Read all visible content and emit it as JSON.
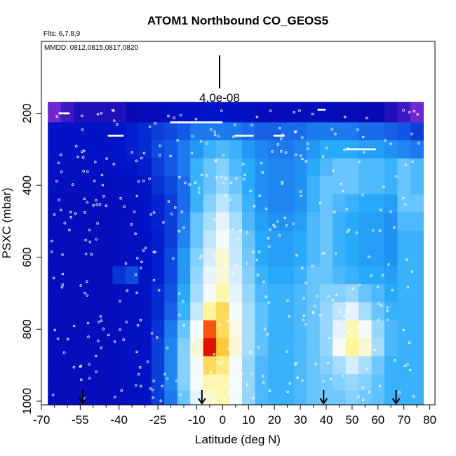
{
  "chart_data": {
    "type": "heatmap",
    "title": "ATOM1 Northbound CO_GEOS5",
    "flights_note": "Flts: 6,7,8,9",
    "dates_note": "MMDD: 0812,0815,0817,0820",
    "scale_label": "4.0e-08",
    "xlabel": "Latitude (deg N)",
    "ylabel": "PSXC (mbar)",
    "xlim": [
      -70,
      82
    ],
    "ylim": [
      1010,
      0
    ],
    "x_ticks": [
      "-70",
      "-55",
      "-40",
      "-25",
      "-10",
      "0",
      "10",
      "20",
      "30",
      "40",
      "50",
      "60",
      "70",
      "80"
    ],
    "x_tick_values": [
      -70,
      -55,
      -40,
      -25,
      -10,
      0,
      10,
      20,
      30,
      40,
      50,
      60,
      70,
      80
    ],
    "y_ticks": [
      "200",
      "400",
      "600",
      "800",
      "1000"
    ],
    "y_tick_values": [
      200,
      400,
      600,
      800,
      1000
    ],
    "arrow_latitudes": [
      -54,
      -8,
      39,
      67
    ],
    "lat_bins": [
      -65,
      -60,
      -55,
      -50,
      -45,
      -40,
      -35,
      -30,
      -25,
      -20,
      -15,
      -10,
      -5,
      0,
      5,
      10,
      15,
      20,
      25,
      30,
      35,
      40,
      45,
      50,
      55,
      60,
      65,
      70,
      75
    ],
    "pressure_bins": [
      200,
      250,
      300,
      350,
      400,
      450,
      500,
      550,
      600,
      650,
      700,
      750,
      800,
      850,
      900,
      950,
      990
    ],
    "values_relative": [
      [
        0.0,
        0.05,
        0.08,
        0.08,
        0.08,
        0.08,
        0.1,
        0.12,
        0.15,
        0.18,
        0.2,
        0.2,
        0.22,
        0.2,
        0.2,
        0.18,
        0.15,
        0.14,
        0.14,
        0.14,
        0.14,
        0.14,
        0.12,
        0.12,
        0.1,
        0.1,
        0.08,
        0.05,
        0.0
      ],
      [
        0.2,
        0.2,
        0.2,
        0.2,
        0.2,
        0.22,
        0.24,
        0.26,
        0.3,
        0.32,
        0.35,
        0.4,
        0.4,
        0.4,
        0.4,
        0.38,
        0.36,
        0.36,
        0.38,
        0.38,
        0.4,
        0.4,
        0.4,
        0.4,
        0.38,
        0.38,
        0.36,
        0.34,
        0.3
      ],
      [
        0.2,
        0.2,
        0.2,
        0.2,
        0.2,
        0.22,
        0.24,
        0.26,
        0.32,
        0.35,
        0.4,
        0.45,
        0.5,
        0.52,
        0.5,
        0.45,
        0.42,
        0.4,
        0.4,
        0.42,
        0.45,
        0.48,
        0.48,
        0.48,
        0.46,
        0.46,
        0.44,
        0.42,
        0.4
      ],
      [
        0.18,
        0.18,
        0.18,
        0.18,
        0.18,
        0.2,
        0.22,
        0.24,
        0.3,
        0.35,
        0.4,
        0.5,
        0.55,
        0.58,
        0.52,
        0.48,
        0.44,
        0.42,
        0.42,
        0.44,
        0.48,
        0.52,
        0.55,
        0.55,
        0.52,
        0.52,
        0.5,
        0.55,
        0.52
      ],
      [
        0.16,
        0.16,
        0.16,
        0.16,
        0.16,
        0.18,
        0.2,
        0.22,
        0.28,
        0.32,
        0.38,
        0.5,
        0.55,
        0.6,
        0.55,
        0.48,
        0.44,
        0.42,
        0.42,
        0.44,
        0.5,
        0.55,
        0.55,
        0.55,
        0.52,
        0.52,
        0.5,
        0.55,
        0.52
      ],
      [
        0.15,
        0.15,
        0.15,
        0.15,
        0.15,
        0.16,
        0.18,
        0.2,
        0.25,
        0.3,
        0.38,
        0.5,
        0.58,
        0.65,
        0.58,
        0.5,
        0.44,
        0.42,
        0.42,
        0.44,
        0.5,
        0.55,
        0.52,
        0.5,
        0.48,
        0.48,
        0.46,
        0.55,
        0.55
      ],
      [
        0.15,
        0.15,
        0.15,
        0.15,
        0.15,
        0.16,
        0.18,
        0.2,
        0.25,
        0.3,
        0.4,
        0.55,
        0.62,
        0.7,
        0.62,
        0.52,
        0.46,
        0.44,
        0.44,
        0.46,
        0.52,
        0.55,
        0.5,
        0.48,
        0.46,
        0.46,
        0.44,
        0.52,
        0.52
      ],
      [
        0.15,
        0.15,
        0.15,
        0.15,
        0.15,
        0.16,
        0.18,
        0.2,
        0.24,
        0.3,
        0.42,
        0.55,
        0.65,
        0.72,
        0.65,
        0.55,
        0.48,
        0.46,
        0.46,
        0.48,
        0.52,
        0.55,
        0.5,
        0.48,
        0.46,
        0.46,
        0.44,
        0.5,
        0.5
      ],
      [
        0.15,
        0.15,
        0.15,
        0.15,
        0.15,
        0.16,
        0.18,
        0.2,
        0.24,
        0.32,
        0.45,
        0.58,
        0.68,
        0.75,
        0.66,
        0.56,
        0.48,
        0.46,
        0.46,
        0.48,
        0.52,
        0.55,
        0.5,
        0.48,
        0.46,
        0.46,
        0.44,
        0.5,
        0.5
      ],
      [
        0.15,
        0.15,
        0.15,
        0.15,
        0.15,
        0.28,
        0.32,
        0.2,
        0.24,
        0.32,
        0.45,
        0.6,
        0.7,
        0.75,
        0.68,
        0.58,
        0.5,
        0.48,
        0.48,
        0.5,
        0.55,
        0.55,
        0.52,
        0.5,
        0.48,
        0.48,
        0.46,
        0.5,
        0.5
      ],
      [
        0.15,
        0.15,
        0.15,
        0.15,
        0.15,
        0.16,
        0.18,
        0.2,
        0.26,
        0.34,
        0.48,
        0.62,
        0.72,
        0.78,
        0.7,
        0.6,
        0.52,
        0.5,
        0.5,
        0.52,
        0.55,
        0.58,
        0.58,
        0.6,
        0.55,
        0.52,
        0.48,
        0.5,
        0.5
      ],
      [
        0.15,
        0.15,
        0.15,
        0.15,
        0.15,
        0.16,
        0.18,
        0.2,
        0.26,
        0.36,
        0.5,
        0.66,
        0.8,
        0.85,
        0.72,
        0.62,
        0.54,
        0.5,
        0.5,
        0.52,
        0.55,
        0.6,
        0.65,
        0.7,
        0.62,
        0.55,
        0.5,
        0.5,
        0.5
      ],
      [
        0.15,
        0.15,
        0.15,
        0.15,
        0.15,
        0.16,
        0.18,
        0.2,
        0.28,
        0.4,
        0.55,
        0.72,
        0.95,
        0.85,
        0.74,
        0.62,
        0.54,
        0.5,
        0.5,
        0.52,
        0.55,
        0.6,
        0.7,
        0.78,
        0.72,
        0.6,
        0.52,
        0.5,
        0.5
      ],
      [
        0.15,
        0.15,
        0.15,
        0.15,
        0.15,
        0.16,
        0.18,
        0.2,
        0.3,
        0.42,
        0.58,
        0.75,
        1.0,
        0.88,
        0.75,
        0.62,
        0.54,
        0.5,
        0.5,
        0.52,
        0.55,
        0.6,
        0.72,
        0.8,
        0.75,
        0.62,
        0.52,
        0.5,
        0.5
      ],
      [
        0.15,
        0.15,
        0.15,
        0.15,
        0.15,
        0.16,
        0.18,
        0.2,
        0.3,
        0.42,
        0.58,
        0.72,
        0.85,
        0.82,
        0.72,
        0.6,
        0.52,
        0.5,
        0.5,
        0.52,
        0.55,
        0.58,
        0.62,
        0.68,
        0.62,
        0.56,
        0.5,
        0.5,
        0.5
      ],
      [
        0.15,
        0.15,
        0.15,
        0.15,
        0.15,
        0.16,
        0.18,
        0.2,
        0.3,
        0.42,
        0.58,
        0.72,
        0.78,
        0.78,
        0.72,
        0.6,
        0.52,
        0.5,
        0.5,
        0.52,
        0.55,
        0.56,
        0.58,
        0.6,
        0.58,
        0.54,
        0.5,
        0.5,
        0.5
      ],
      [
        0.15,
        0.15,
        0.15,
        0.15,
        0.15,
        0.16,
        0.18,
        0.2,
        0.3,
        0.4,
        0.55,
        0.7,
        0.75,
        0.78,
        0.72,
        0.6,
        0.52,
        0.5,
        0.5,
        0.52,
        0.55,
        0.56,
        0.56,
        0.58,
        0.56,
        0.54,
        0.5,
        0.5,
        0.5
      ]
    ]
  }
}
